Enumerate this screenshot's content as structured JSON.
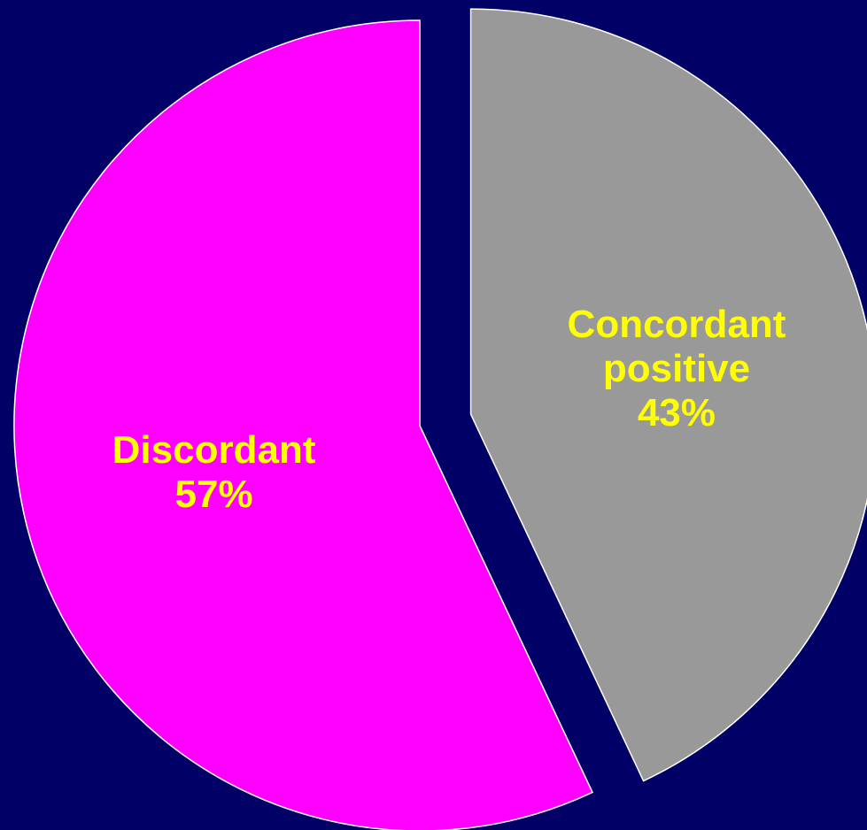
{
  "background_color": "#000066",
  "chart_data": {
    "type": "pie",
    "title": "",
    "slices": [
      {
        "label_lines": [
          "Concordant",
          "positive"
        ],
        "percent_label": "43%",
        "value": 43,
        "color": "#999999",
        "exploded": true
      },
      {
        "label_lines": [
          "Discordant"
        ],
        "percent_label": "57%",
        "value": 57,
        "color": "#ff00ff",
        "exploded": false
      }
    ],
    "start_angle_deg": 0,
    "direction": "clockwise",
    "legend": "none",
    "label_color": "#ffff00",
    "outline_color": "#ffffff"
  }
}
